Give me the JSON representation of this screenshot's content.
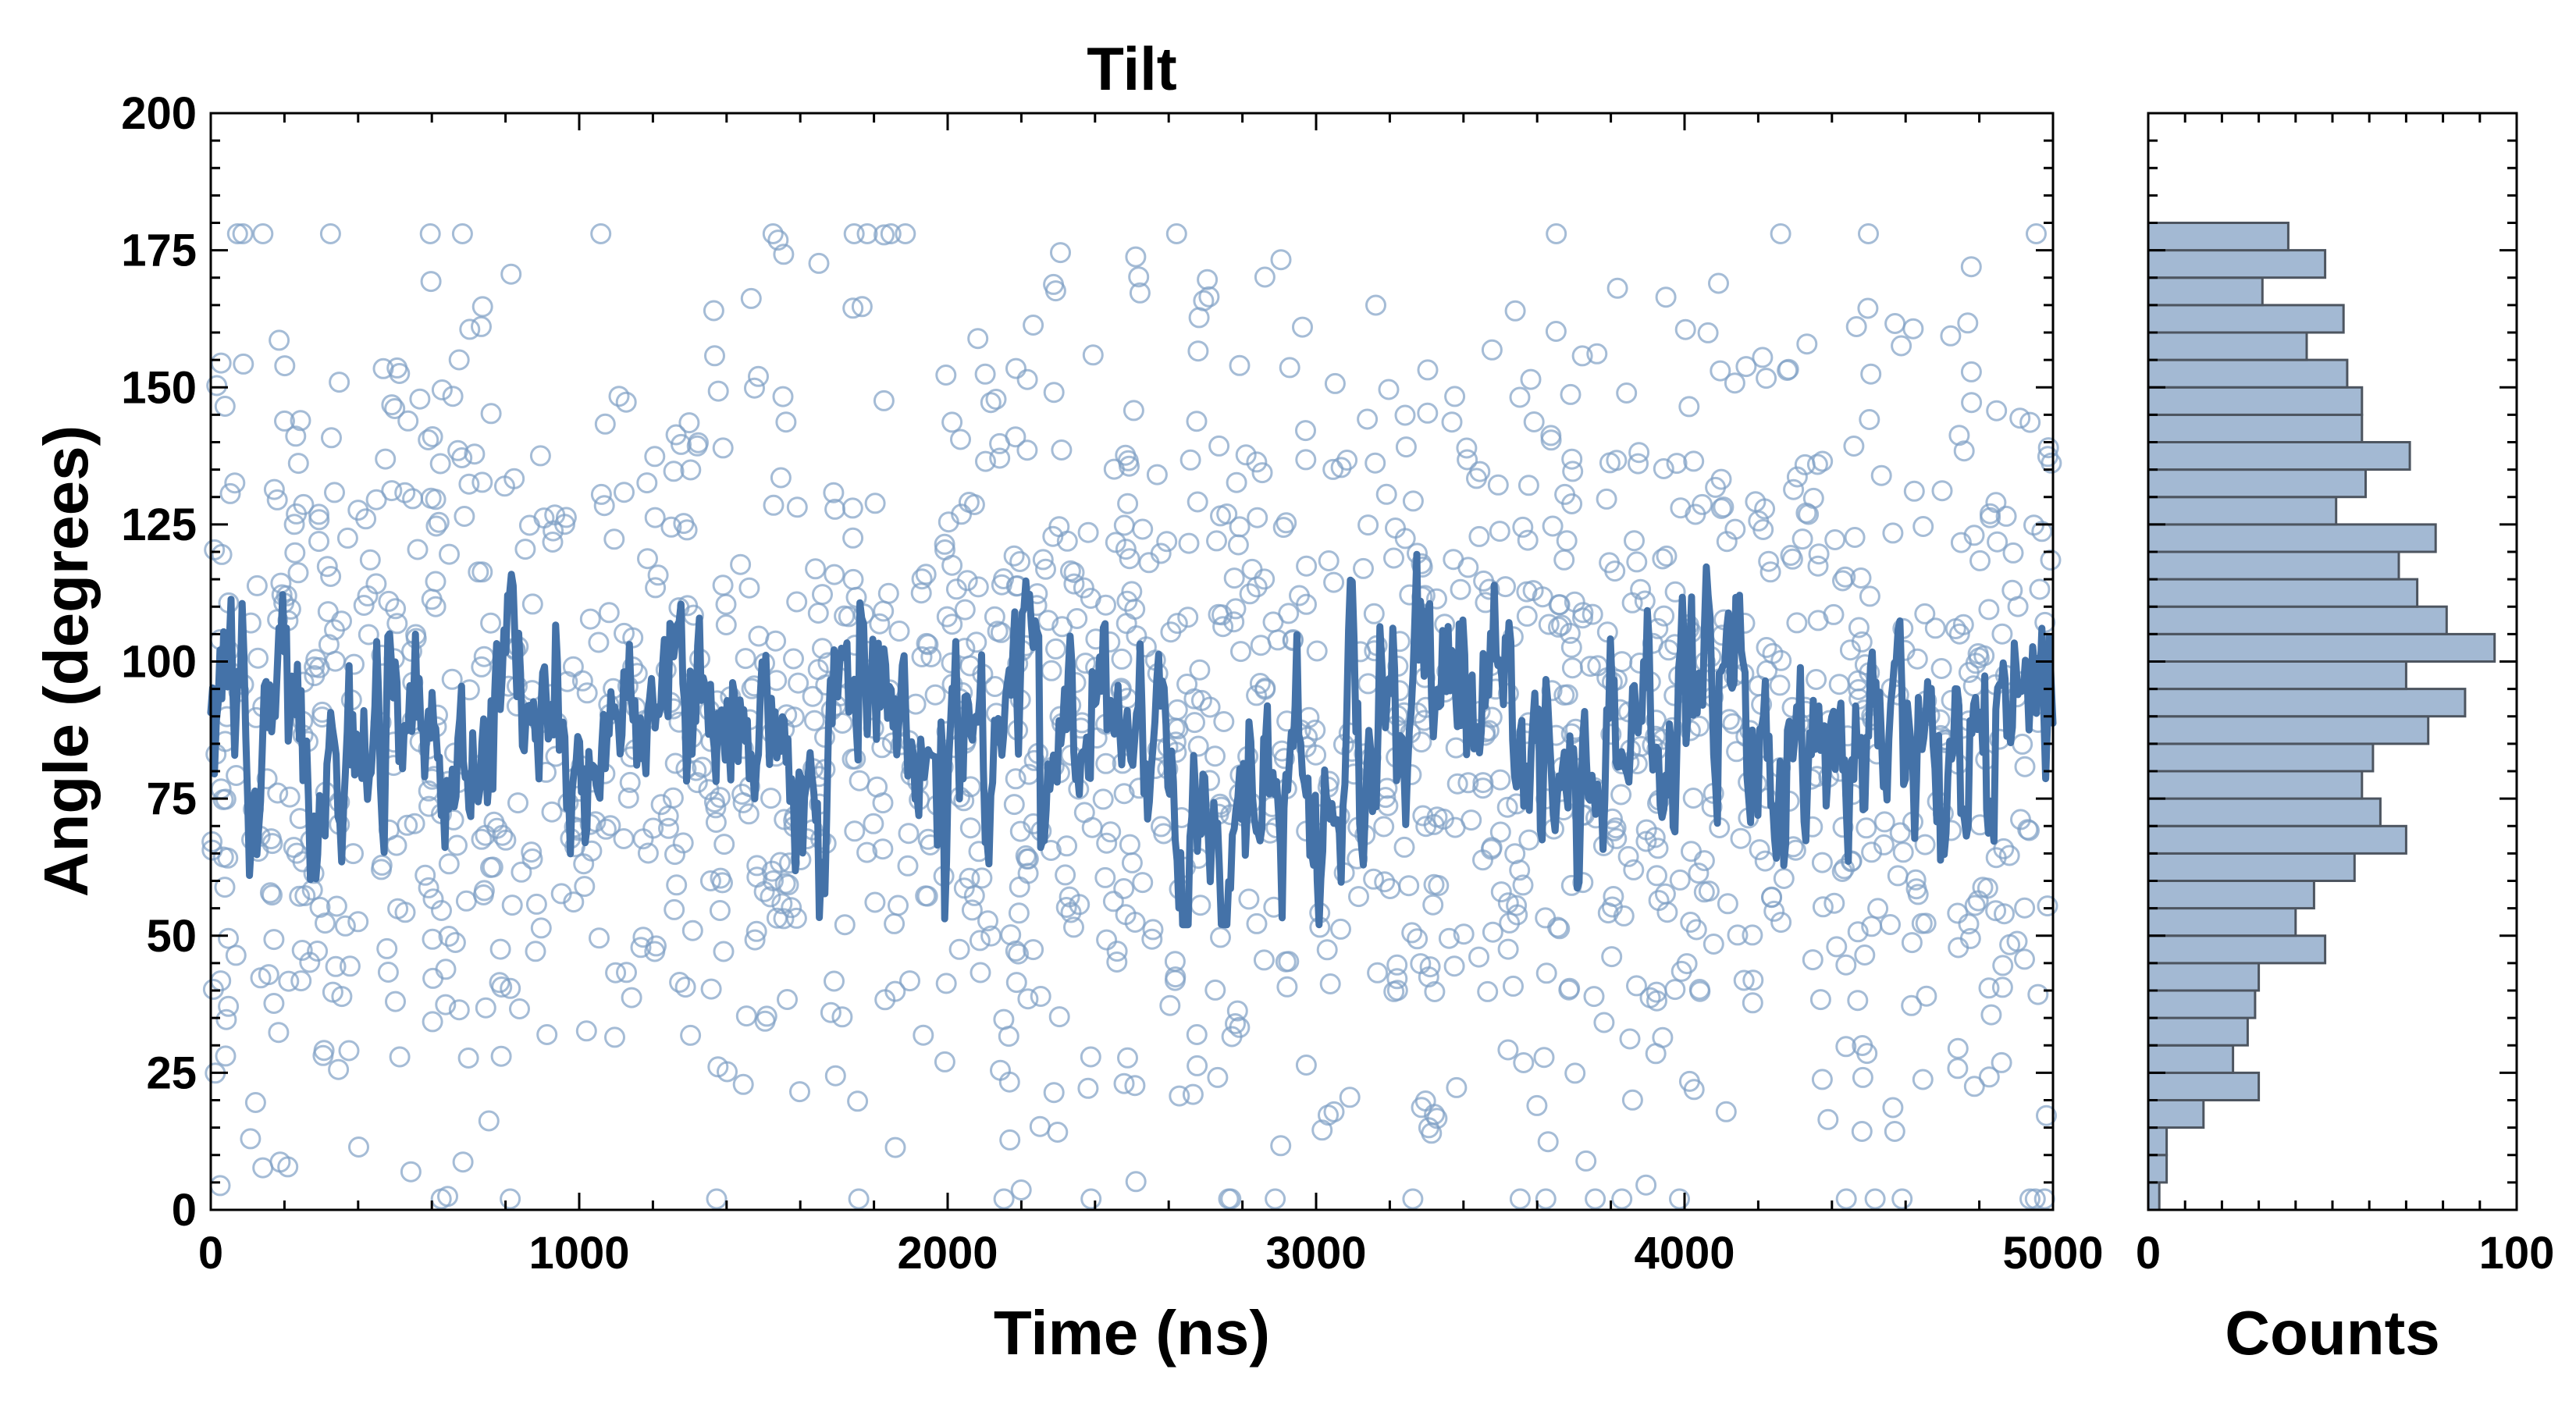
{
  "chart_data": [
    {
      "type": "scatter",
      "title": "Tilt",
      "xlabel": "Time (ns)",
      "ylabel": "Angle (degrees)",
      "xlim": [
        0,
        5000
      ],
      "ylim": [
        0,
        200
      ],
      "x_ticks": [
        "0",
        "1000",
        "2000",
        "3000",
        "4000",
        "5000"
      ],
      "y_ticks": [
        "0",
        "25",
        "50",
        "75",
        "100",
        "125",
        "150",
        "175",
        "200"
      ],
      "grid": false,
      "scatter_series": {
        "marker": "open-circle",
        "color": "#7f9fc4",
        "n_points": 1600,
        "distribution": {
          "mean": 88,
          "sd": 38,
          "min": 2,
          "max": 178
        }
      },
      "line_series": {
        "color": "#4472a8",
        "n_points": 1000,
        "mean": 87,
        "typical_range": [
          55,
          130
        ]
      }
    },
    {
      "type": "bar",
      "orientation": "horizontal",
      "xlabel": "Counts",
      "xlim": [
        0,
        100
      ],
      "x_ticks": [
        "0",
        "100"
      ],
      "bin_width": 5,
      "bin_starts": [
        0,
        5,
        10,
        15,
        20,
        25,
        30,
        35,
        40,
        45,
        50,
        55,
        60,
        65,
        70,
        75,
        80,
        85,
        90,
        95,
        100,
        105,
        110,
        115,
        120,
        125,
        130,
        135,
        140,
        145,
        150,
        155,
        160,
        165,
        170,
        175
      ],
      "values": [
        3,
        5,
        5,
        15,
        30,
        23,
        27,
        29,
        30,
        48,
        40,
        45,
        56,
        70,
        63,
        58,
        61,
        76,
        86,
        70,
        94,
        81,
        73,
        68,
        78,
        51,
        59,
        71,
        58,
        58,
        54,
        43,
        53,
        31,
        48,
        38
      ],
      "bar_color": "#a3b9d3",
      "edge_color": "#4d5560"
    }
  ]
}
